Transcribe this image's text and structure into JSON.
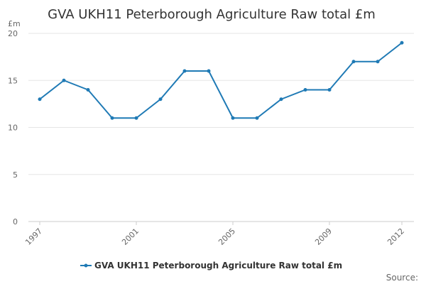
{
  "chart_data": {
    "type": "line",
    "title": "GVA UKH11 Peterborough Agriculture Raw total £m",
    "y_unit_label": "£m",
    "xlabel": "",
    "ylabel": "",
    "x": [
      "1997",
      "1998",
      "1999",
      "2000",
      "2001",
      "2002",
      "2003",
      "2004",
      "2005",
      "2006",
      "2007",
      "2008",
      "2009",
      "2010",
      "2011",
      "2012"
    ],
    "x_tick_labels": [
      "1997",
      "2001",
      "2005",
      "2009",
      "2012"
    ],
    "y_ticks": [
      0,
      5,
      10,
      15,
      20
    ],
    "ylim": [
      0,
      20
    ],
    "grid": true,
    "legend_position": "bottom-center",
    "series": [
      {
        "name": "GVA UKH11 Peterborough Agriculture Raw total £m",
        "color": "#1f7ab5",
        "values": [
          13,
          15,
          14,
          11,
          11,
          13,
          16,
          16,
          11,
          11,
          13,
          14,
          14,
          17,
          17,
          19
        ]
      }
    ],
    "source_label": "Source:"
  }
}
